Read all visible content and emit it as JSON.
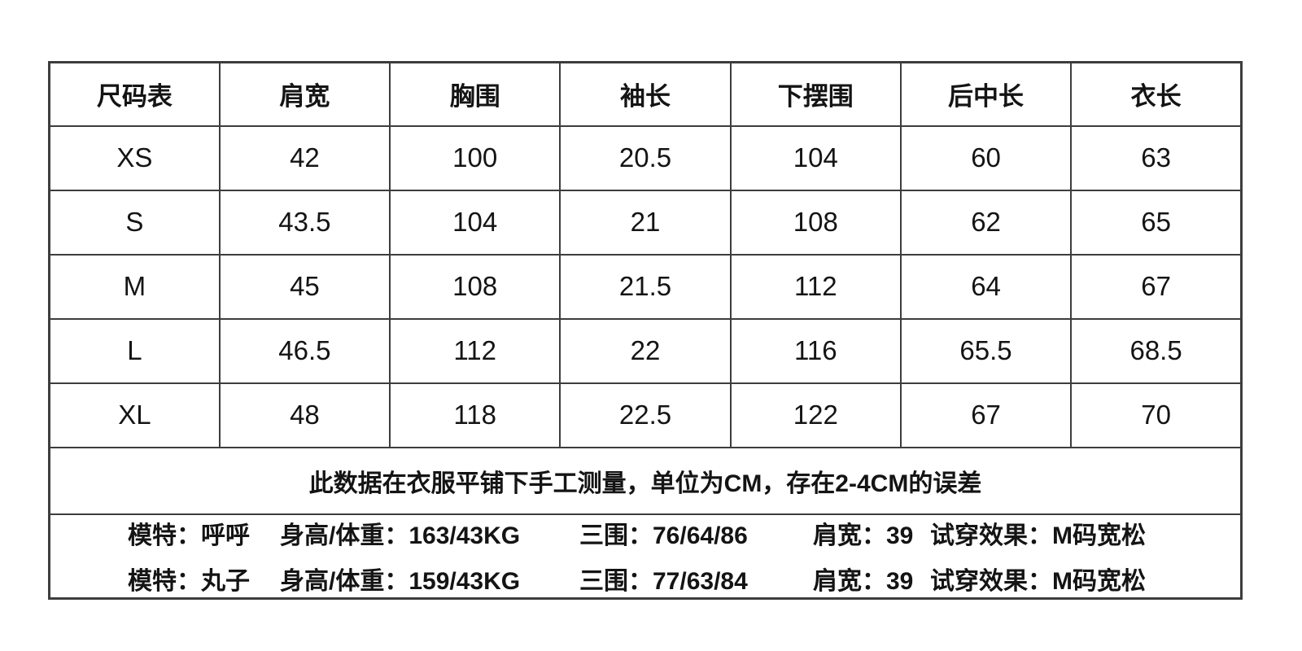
{
  "colors": {
    "background": "#ffffff",
    "border": "#3d3d3d",
    "text": "#141414"
  },
  "chart_data": {
    "type": "table",
    "columns": [
      "尺码表",
      "肩宽",
      "胸围",
      "袖长",
      "下摆围",
      "后中长",
      "衣长"
    ],
    "rows": [
      {
        "size": "XS",
        "values": [
          "42",
          "100",
          "20.5",
          "104",
          "60",
          "63"
        ]
      },
      {
        "size": "S",
        "values": [
          "43.5",
          "104",
          "21",
          "108",
          "62",
          "65"
        ]
      },
      {
        "size": "M",
        "values": [
          "45",
          "108",
          "21.5",
          "112",
          "64",
          "67"
        ]
      },
      {
        "size": "L",
        "values": [
          "46.5",
          "112",
          "22",
          "116",
          "65.5",
          "68.5"
        ]
      },
      {
        "size": "XL",
        "values": [
          "48",
          "118",
          "22.5",
          "122",
          "67",
          "70"
        ]
      }
    ],
    "note": "此数据在衣服平铺下手工测量，单位为CM，存在2-4CM的误差",
    "model_lines": [
      {
        "segments": [
          "模特：呼呼",
          "身高/体重：163/43KG",
          "三围：76/64/86",
          "肩宽：39",
          "试穿效果：M码宽松"
        ]
      },
      {
        "segments": [
          "模特：丸子",
          "身高/体重：159/43KG",
          "三围：77/63/84",
          "肩宽：39",
          "试穿效果：M码宽松"
        ]
      }
    ]
  }
}
